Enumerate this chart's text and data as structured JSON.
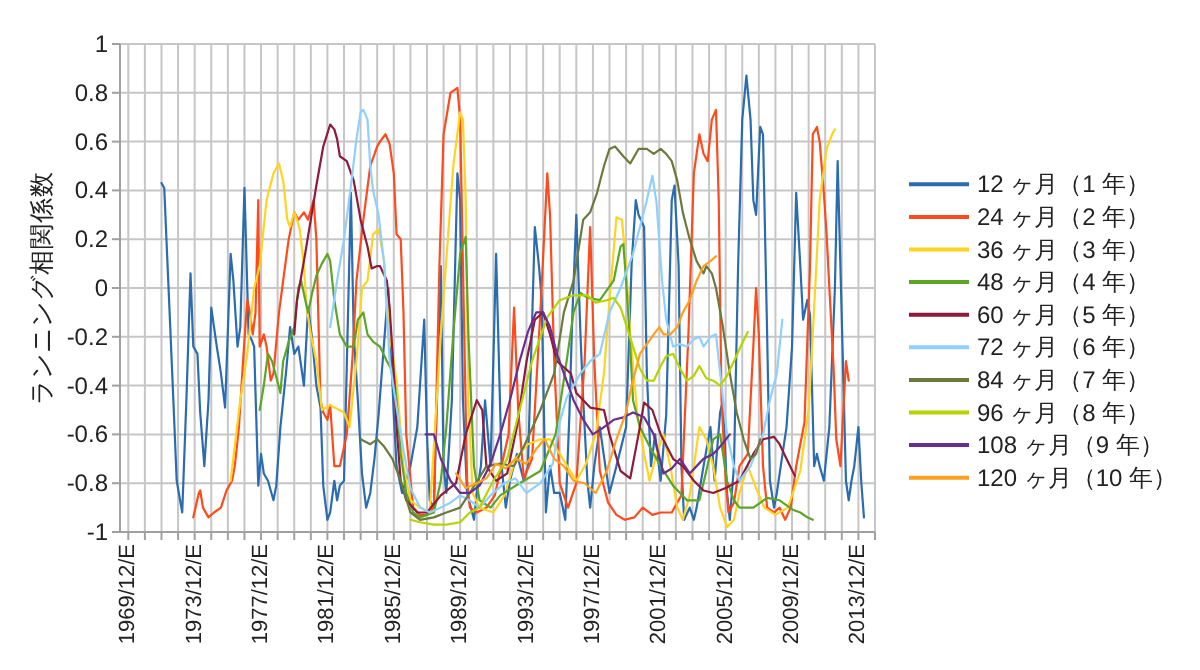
{
  "chart_data": {
    "type": "line",
    "ylabel": "ランニング相関係数",
    "xlim": [
      "1969-06",
      "2014-12"
    ],
    "ylim": [
      -1,
      1
    ],
    "yticks": [
      -1,
      -0.8,
      -0.6,
      -0.4,
      -0.2,
      0,
      0.2,
      0.4,
      0.6,
      0.8,
      1
    ],
    "xticks": [
      {
        "value": "1969-12",
        "label": "1969/12/E"
      },
      {
        "value": "1970-12",
        "label": null
      },
      {
        "value": "1971-12",
        "label": null
      },
      {
        "value": "1972-12",
        "label": null
      },
      {
        "value": "1973-12",
        "label": "1973/12/E"
      },
      {
        "value": "1974-12",
        "label": null
      },
      {
        "value": "1975-12",
        "label": null
      },
      {
        "value": "1976-12",
        "label": null
      },
      {
        "value": "1977-12",
        "label": "1977/12/E"
      },
      {
        "value": "1978-12",
        "label": null
      },
      {
        "value": "1979-12",
        "label": null
      },
      {
        "value": "1980-12",
        "label": null
      },
      {
        "value": "1981-12",
        "label": "1981/12/E"
      },
      {
        "value": "1982-12",
        "label": null
      },
      {
        "value": "1983-12",
        "label": null
      },
      {
        "value": "1984-12",
        "label": null
      },
      {
        "value": "1985-12",
        "label": "1985/12/E"
      },
      {
        "value": "1986-12",
        "label": null
      },
      {
        "value": "1987-12",
        "label": null
      },
      {
        "value": "1988-12",
        "label": null
      },
      {
        "value": "1989-12",
        "label": "1989/12/E"
      },
      {
        "value": "1990-12",
        "label": null
      },
      {
        "value": "1991-12",
        "label": null
      },
      {
        "value": "1992-12",
        "label": null
      },
      {
        "value": "1993-12",
        "label": "1993/12/E"
      },
      {
        "value": "1994-12",
        "label": null
      },
      {
        "value": "1995-12",
        "label": null
      },
      {
        "value": "1996-12",
        "label": null
      },
      {
        "value": "1997-12",
        "label": "1997/12/E"
      },
      {
        "value": "1998-12",
        "label": null
      },
      {
        "value": "1999-12",
        "label": null
      },
      {
        "value": "2000-12",
        "label": null
      },
      {
        "value": "2001-12",
        "label": "2001/12/E"
      },
      {
        "value": "2002-12",
        "label": null
      },
      {
        "value": "2003-12",
        "label": null
      },
      {
        "value": "2004-12",
        "label": null
      },
      {
        "value": "2005-12",
        "label": "2005/12/E"
      },
      {
        "value": "2006-12",
        "label": null
      },
      {
        "value": "2007-12",
        "label": null
      },
      {
        "value": "2008-12",
        "label": null
      },
      {
        "value": "2009-12",
        "label": "2009/12/E"
      },
      {
        "value": "2010-12",
        "label": null
      },
      {
        "value": "2011-12",
        "label": null
      },
      {
        "value": "2012-12",
        "label": null
      },
      {
        "value": "2013-12",
        "label": "2013/12/E"
      },
      {
        "value": "2014-12",
        "label": null
      }
    ],
    "grid": true,
    "legend": "right",
    "series": [
      {
        "name": "12 ヶ月（1 年）",
        "color": "#2b6cb0",
        "x": [
          "1971-12",
          "1972-02",
          "1972-08",
          "1972-11",
          "1973-03",
          "1973-06",
          "1973-09",
          "1973-11",
          "1974-02",
          "1974-04",
          "1974-07",
          "1974-10",
          "1974-12",
          "1975-02",
          "1975-04",
          "1975-07",
          "1975-10",
          "1976-02",
          "1976-04",
          "1976-07",
          "1976-09",
          "1976-12",
          "1977-03",
          "1977-05",
          "1977-07",
          "1977-10",
          "1977-12",
          "1978-02",
          "1978-05",
          "1978-09",
          "1978-11",
          "1979-02",
          "1979-06",
          "1979-09",
          "1979-12",
          "1980-03",
          "1980-07",
          "1980-10",
          "1981-01",
          "1981-04",
          "1981-07",
          "1981-09",
          "1981-12",
          "1982-02",
          "1982-05",
          "1982-07",
          "1982-09",
          "1982-12",
          "1983-02",
          "1983-05",
          "1983-07",
          "1983-10",
          "1984-01",
          "1984-04",
          "1984-07",
          "1984-10",
          "1985-01",
          "1985-08",
          "1985-12",
          "1986-02",
          "1986-06",
          "1986-12",
          "1987-05",
          "1987-10",
          "1987-12",
          "1988-02",
          "1988-05",
          "1988-10",
          "1988-12",
          "1989-02",
          "1989-06",
          "1989-10",
          "1989-12",
          "1990-02",
          "1990-05",
          "1990-10",
          "1990-12",
          "1991-03",
          "1991-06",
          "1991-10",
          "1992-02",
          "1992-06",
          "1992-09",
          "1992-12",
          "1993-05",
          "1993-10",
          "1994-01",
          "1994-06",
          "1994-09",
          "1994-11",
          "1995-02",
          "1995-05",
          "1995-08",
          "1995-12",
          "1996-04",
          "1996-07",
          "1996-09",
          "1996-12",
          "1997-03",
          "1997-05",
          "1997-08",
          "1997-10",
          "1998-01",
          "1998-05",
          "1998-09",
          "1998-12",
          "1999-05",
          "1999-12",
          "2000-04",
          "2000-07",
          "2000-09",
          "2001-01",
          "2001-03",
          "2001-06",
          "2001-09",
          "2002-01",
          "2002-05",
          "2002-09",
          "2002-11",
          "2003-02",
          "2003-04",
          "2003-06",
          "2003-10",
          "2004-01",
          "2004-03",
          "2004-08",
          "2005-01",
          "2005-04",
          "2005-08",
          "2005-10",
          "2006-01",
          "2006-03",
          "2006-06",
          "2006-09",
          "2006-12",
          "2007-03",
          "2007-06",
          "2007-08",
          "2007-10",
          "2008-01",
          "2008-03",
          "2008-06",
          "2008-08",
          "2008-11",
          "2009-01",
          "2009-08",
          "2009-12",
          "2010-03",
          "2010-06",
          "2010-08",
          "2010-11",
          "2011-01",
          "2011-04",
          "2011-06",
          "2011-08",
          "2011-11",
          "2012-03",
          "2012-07",
          "2012-09",
          "2012-12",
          "2013-03",
          "2013-05",
          "2013-07",
          "2013-09",
          "2013-12",
          "2014-02",
          "2014-04"
        ],
        "values": [
          0.43,
          0.41,
          -0.38,
          -0.79,
          -0.92,
          -0.46,
          0.06,
          -0.24,
          -0.27,
          -0.51,
          -0.73,
          -0.46,
          -0.08,
          -0.16,
          -0.24,
          -0.35,
          -0.49,
          0.14,
          0.03,
          -0.24,
          -0.16,
          0.41,
          -0.19,
          -0.21,
          -0.24,
          -0.81,
          -0.68,
          -0.76,
          -0.79,
          -0.87,
          -0.81,
          -0.57,
          -0.35,
          -0.16,
          -0.27,
          -0.24,
          -0.4,
          -0.08,
          -0.21,
          -0.4,
          -0.49,
          -0.81,
          -0.95,
          -0.92,
          -0.79,
          -0.87,
          -0.81,
          -0.79,
          -0.32,
          0.39,
          -0.19,
          -0.46,
          -0.76,
          -0.9,
          -0.84,
          -0.7,
          -0.52,
          0.0,
          -0.52,
          -0.73,
          -0.84,
          -0.73,
          -0.57,
          -0.13,
          -0.6,
          -0.87,
          -0.9,
          0.09,
          -0.73,
          -0.84,
          -0.46,
          0.47,
          0.36,
          -0.46,
          -0.84,
          -0.95,
          -0.84,
          -0.73,
          -0.46,
          -0.73,
          0.14,
          -0.73,
          -0.9,
          -0.79,
          -0.68,
          -0.79,
          -0.73,
          0.25,
          0.09,
          -0.05,
          -0.92,
          -0.73,
          -0.84,
          -0.84,
          -0.95,
          -0.52,
          -0.13,
          0.3,
          -0.19,
          -0.46,
          -0.79,
          -0.9,
          -0.73,
          -0.57,
          -0.73,
          -0.84,
          -0.73,
          -0.57,
          0.1,
          0.36,
          0.3,
          0.25,
          -0.35,
          -0.73,
          -0.6,
          -0.79,
          -0.52,
          0.36,
          0.42,
          0.09,
          -0.73,
          -0.95,
          -0.9,
          -0.95,
          -0.9,
          -0.73,
          -0.57,
          -0.79,
          -0.51,
          -0.46,
          -0.84,
          -0.95,
          -0.73,
          0.09,
          0.69,
          0.87,
          0.69,
          0.36,
          0.3,
          0.66,
          0.63,
          -0.19,
          -0.79,
          -0.9,
          -0.84,
          -0.57,
          -0.24,
          0.39,
          0.09,
          -0.13,
          -0.05,
          -0.11,
          -0.73,
          -0.68,
          -0.73,
          -0.79,
          -0.57,
          0.0,
          0.52,
          -0.13,
          -0.79,
          -0.87,
          -0.79,
          -0.73,
          -0.57,
          -0.79,
          -0.94
        ]
      },
      {
        "name": "24 ヶ月（2 年）",
        "color": "#ff4a1c",
        "x": [
          "1973-11",
          "1974-03",
          "1974-04",
          "1974-06",
          "1974-10",
          "1975-02",
          "1975-07",
          "1975-11",
          "1976-03",
          "1976-05",
          "1976-08",
          "1976-11",
          "1977-02",
          "1977-04",
          "1977-06",
          "1977-08",
          "1977-10",
          "1977-11",
          "1978-02",
          "1978-04",
          "1978-07",
          "1978-09",
          "1979-01",
          "1979-04",
          "1979-08",
          "1979-12",
          "1980-03",
          "1980-07",
          "1980-10",
          "1981-02",
          "1981-04",
          "1981-07",
          "1981-09",
          "1981-12",
          "1982-02",
          "1982-05",
          "1982-09",
          "1983-02",
          "1983-06",
          "1983-09",
          "1984-02",
          "1984-07",
          "1984-12",
          "1985-02",
          "1985-06",
          "1985-09",
          "1985-12",
          "1986-02",
          "1986-05",
          "1986-07",
          "1986-09",
          "1987-02",
          "1987-07",
          "1987-12",
          "1988-05",
          "1988-09",
          "1988-12",
          "1989-05",
          "1989-10",
          "1989-12",
          "1990-02",
          "1990-05",
          "1990-07",
          "1990-12",
          "1991-07",
          "1992-01",
          "1992-05",
          "1992-11",
          "1993-03",
          "1993-06",
          "1993-10",
          "1994-04",
          "1994-10",
          "1995-03",
          "1995-05",
          "1995-08",
          "1995-12",
          "1996-06",
          "1996-12",
          "1997-06",
          "1997-10",
          "1998-01",
          "1998-05",
          "1998-11",
          "1999-05",
          "1999-11",
          "2000-06",
          "2000-12",
          "2001-07",
          "2002-01",
          "2002-09",
          "2003-04",
          "2003-09",
          "2004-01",
          "2004-05",
          "2004-08",
          "2004-11",
          "2005-02",
          "2005-05",
          "2005-07",
          "2005-09",
          "2005-12",
          "2006-02",
          "2006-06",
          "2006-10",
          "2007-04",
          "2007-08",
          "2007-10",
          "2007-12",
          "2008-03",
          "2008-06",
          "2008-11",
          "2009-03",
          "2009-07",
          "2009-11",
          "2010-03",
          "2010-09",
          "2011-01",
          "2011-03",
          "2011-06",
          "2011-08",
          "2011-11",
          "2012-01",
          "2012-03",
          "2012-06",
          "2012-08",
          "2012-11",
          "2013-03",
          "2013-05"
        ],
        "values": [
          -0.94,
          -0.84,
          -0.83,
          -0.9,
          -0.94,
          -0.92,
          -0.9,
          -0.83,
          -0.79,
          -0.73,
          -0.57,
          -0.3,
          -0.05,
          -0.1,
          -0.19,
          -0.1,
          0.36,
          -0.24,
          -0.19,
          -0.24,
          -0.38,
          -0.35,
          -0.1,
          0.03,
          0.2,
          0.31,
          0.28,
          0.31,
          0.28,
          0.36,
          0.2,
          -0.46,
          -0.51,
          -0.54,
          -0.48,
          -0.73,
          -0.73,
          -0.6,
          -0.3,
          0.03,
          0.28,
          0.5,
          0.58,
          0.6,
          0.63,
          0.59,
          0.47,
          0.22,
          0.2,
          -0.1,
          -0.6,
          -0.9,
          -0.93,
          -0.93,
          -0.9,
          0.09,
          0.63,
          0.8,
          0.82,
          0.69,
          0.09,
          -0.79,
          -0.9,
          -0.92,
          -0.9,
          -0.85,
          -0.75,
          -0.6,
          -0.08,
          -0.5,
          -0.78,
          -0.7,
          -0.1,
          0.47,
          0.3,
          -0.3,
          -0.8,
          -0.9,
          -0.8,
          -0.3,
          0.25,
          -0.3,
          -0.75,
          -0.88,
          -0.93,
          -0.95,
          -0.94,
          -0.9,
          -0.93,
          -0.92,
          -0.92,
          -0.85,
          -0.2,
          0.47,
          0.63,
          0.55,
          0.52,
          0.69,
          0.73,
          0.36,
          -0.46,
          -0.79,
          -0.92,
          -0.88,
          -0.73,
          -0.68,
          -0.24,
          0.0,
          -0.19,
          -0.73,
          -0.9,
          -0.92,
          -0.9,
          -0.95,
          -0.9,
          -0.73,
          -0.55,
          0.09,
          0.63,
          0.66,
          0.6,
          0.39,
          0.22,
          0.0,
          -0.32,
          -0.62,
          -0.73,
          -0.3,
          -0.38
        ]
      },
      {
        "name": "36 ヶ月（3 年）",
        "color": "#ffd320",
        "x": [
          "1976-02",
          "1976-09",
          "1977-02",
          "1977-07",
          "1977-11",
          "1978-04",
          "1978-09",
          "1979-01",
          "1979-04",
          "1979-07",
          "1979-09",
          "1979-12",
          "1980-02",
          "1980-04",
          "1980-07",
          "1980-09",
          "1980-12",
          "1981-04",
          "1981-08",
          "1982-02",
          "1982-12",
          "1983-04",
          "1983-09",
          "1984-01",
          "1984-05",
          "1984-09",
          "1985-01",
          "1985-05",
          "1985-09",
          "1986-02",
          "1986-07",
          "1986-12",
          "1987-07",
          "1988-02",
          "1988-10",
          "1989-07",
          "1989-12",
          "1990-02",
          "1990-04",
          "1990-06",
          "1990-09",
          "1991-02",
          "1991-12",
          "1992-08",
          "1993-04",
          "1994-01",
          "1994-10",
          "1995-05",
          "1995-12",
          "1996-12",
          "1997-07",
          "1998-02",
          "1998-08",
          "1998-12",
          "1999-05",
          "1999-09",
          "1999-12",
          "2000-03",
          "2000-08",
          "2001-01",
          "2001-05",
          "2001-10",
          "2002-03",
          "2002-08",
          "2003-01",
          "2003-05",
          "2003-10",
          "2004-05",
          "2004-10",
          "2005-03",
          "2005-08",
          "2006-01",
          "2006-06",
          "2006-10",
          "2007-04",
          "2007-10",
          "2008-04",
          "2008-12",
          "2009-09",
          "2010-06",
          "2010-12",
          "2011-03",
          "2011-08",
          "2012-01",
          "2012-05",
          "2012-07"
        ],
        "values": [
          -0.79,
          -0.46,
          -0.27,
          0.0,
          0.09,
          0.36,
          0.47,
          0.51,
          0.44,
          0.28,
          0.25,
          0.31,
          0.28,
          0.24,
          0.09,
          -0.08,
          -0.19,
          -0.3,
          -0.5,
          -0.48,
          -0.51,
          -0.57,
          -0.3,
          0.0,
          0.03,
          0.22,
          0.24,
          0.11,
          -0.19,
          -0.38,
          -0.73,
          -0.87,
          -0.9,
          -0.92,
          -0.19,
          0.5,
          0.72,
          0.69,
          0.36,
          -0.46,
          -0.84,
          -0.9,
          -0.92,
          -0.85,
          -0.7,
          -0.64,
          -0.62,
          -0.62,
          -0.68,
          -0.79,
          -0.72,
          -0.6,
          -0.35,
          -0.05,
          0.29,
          0.28,
          0.09,
          -0.19,
          -0.51,
          -0.68,
          -0.79,
          -0.68,
          -0.6,
          -0.73,
          -0.9,
          -0.95,
          -0.85,
          -0.57,
          -0.62,
          -0.73,
          -0.9,
          -0.98,
          -0.95,
          -0.84,
          -0.73,
          -0.82,
          -0.9,
          -0.93,
          -0.9,
          -0.75,
          -0.5,
          -0.19,
          0.36,
          0.57,
          0.63,
          0.65
        ]
      },
      {
        "name": "48 ヶ月（4 年）",
        "color": "#5ca528",
        "x": [
          "1977-11",
          "1978-02",
          "1978-05",
          "1978-08",
          "1979-02",
          "1979-04",
          "1979-08",
          "1979-12",
          "1980-03",
          "1980-05",
          "1980-08",
          "1980-10",
          "1981-01",
          "1981-04",
          "1981-08",
          "1981-12",
          "1982-02",
          "1982-05",
          "1982-09",
          "1983-02",
          "1983-07",
          "1983-10",
          "1984-02",
          "1984-05",
          "1984-09",
          "1985-02",
          "1985-07",
          "1985-12",
          "1986-02",
          "1986-05",
          "1986-09",
          "1987-02",
          "1987-07",
          "1988-05",
          "1988-10",
          "1989-02",
          "1989-07",
          "1989-12",
          "1990-04",
          "1990-06",
          "1990-10",
          "1991-02",
          "1991-10",
          "1992-05",
          "1993-07",
          "1994-10",
          "1995-09",
          "1996-05",
          "1996-10",
          "1997-03",
          "1997-08",
          "1998-05",
          "1999-03",
          "1999-08",
          "1999-10",
          "1999-12",
          "2000-03",
          "2000-05",
          "2000-10",
          "2001-05",
          "2002-01",
          "2002-10",
          "2003-08",
          "2004-05",
          "2004-10",
          "2005-03",
          "2005-08",
          "2006-01",
          "2006-06",
          "2006-10",
          "2007-08",
          "2008-06",
          "2009-03",
          "2010-01",
          "2010-06",
          "2010-11",
          "2011-03"
        ],
        "values": [
          -0.5,
          -0.4,
          -0.27,
          -0.3,
          -0.43,
          -0.3,
          -0.22,
          -0.16,
          0.0,
          0.03,
          -0.05,
          -0.1,
          -0.02,
          0.05,
          0.1,
          0.14,
          0.11,
          -0.05,
          -0.19,
          -0.24,
          -0.24,
          -0.13,
          -0.1,
          -0.19,
          -0.22,
          -0.24,
          -0.3,
          -0.35,
          -0.46,
          -0.68,
          -0.84,
          -0.92,
          -0.94,
          -0.92,
          -0.79,
          -0.57,
          -0.19,
          0.14,
          0.21,
          -0.2,
          -0.73,
          -0.87,
          -0.9,
          -0.85,
          -0.8,
          -0.75,
          -0.6,
          -0.3,
          -0.1,
          -0.02,
          -0.04,
          -0.05,
          0.03,
          0.17,
          0.18,
          0.03,
          -0.24,
          -0.46,
          -0.57,
          -0.65,
          -0.73,
          -0.81,
          -0.87,
          -0.87,
          -0.75,
          -0.62,
          -0.6,
          -0.79,
          -0.87,
          -0.9,
          -0.9,
          -0.86,
          -0.87,
          -0.91,
          -0.92,
          -0.94,
          -0.95
        ]
      },
      {
        "name": "60 ヶ月（5 年）",
        "color": "#8e1a3c",
        "x": [
          "1979-12",
          "1980-02",
          "1980-07",
          "1980-12",
          "1981-04",
          "1981-09",
          "1982-02",
          "1982-05",
          "1982-07",
          "1982-09",
          "1983-02",
          "1983-07",
          "1983-12",
          "1984-05",
          "1984-08",
          "1984-12",
          "1985-02",
          "1985-07",
          "1985-09",
          "1985-12",
          "1986-02",
          "1986-05",
          "1986-09",
          "1987-05",
          "1987-12",
          "1988-10",
          "1989-09",
          "1990-04",
          "1990-12",
          "1991-04",
          "1991-07",
          "1992-02",
          "1992-10",
          "1993-05",
          "1993-12",
          "1994-06",
          "1994-12",
          "1995-05",
          "1995-10",
          "1996-08",
          "1996-12",
          "1997-05",
          "1997-10",
          "1998-08",
          "1998-12",
          "1999-08",
          "2000-03",
          "2000-09",
          "2001-01",
          "2001-07",
          "2002-01",
          "2002-10",
          "2003-05",
          "2004-01",
          "2004-08",
          "2005-03",
          "2005-12",
          "2006-10",
          "2007-08",
          "2008-03",
          "2008-11",
          "2009-03",
          "2009-08",
          "2010-02"
        ],
        "values": [
          -0.19,
          -0.05,
          0.11,
          0.28,
          0.42,
          0.58,
          0.67,
          0.65,
          0.61,
          0.54,
          0.52,
          0.44,
          0.28,
          0.17,
          0.08,
          0.09,
          0.09,
          0.03,
          -0.08,
          -0.35,
          -0.57,
          -0.79,
          -0.87,
          -0.92,
          -0.92,
          -0.85,
          -0.8,
          -0.6,
          -0.46,
          -0.5,
          -0.73,
          -0.79,
          -0.76,
          -0.57,
          -0.3,
          -0.13,
          -0.1,
          -0.19,
          -0.3,
          -0.35,
          -0.43,
          -0.46,
          -0.49,
          -0.5,
          -0.6,
          -0.75,
          -0.78,
          -0.6,
          -0.47,
          -0.5,
          -0.6,
          -0.7,
          -0.73,
          -0.79,
          -0.83,
          -0.84,
          -0.82,
          -0.79,
          -0.68,
          -0.62,
          -0.61,
          -0.64,
          -0.7,
          -0.77
        ]
      },
      {
        "name": "72 ヶ月（6 年）",
        "color": "#8fd0ff",
        "x": [
          "1982-02",
          "1982-07",
          "1982-12",
          "1983-05",
          "1983-09",
          "1983-12",
          "1984-02",
          "1984-05",
          "1984-07",
          "1984-09",
          "1985-01",
          "1985-05",
          "1985-09",
          "1986-05",
          "1986-12",
          "1987-07",
          "1988-02",
          "1988-10",
          "1989-05",
          "1989-12",
          "1990-07",
          "1991-02",
          "1991-10",
          "1992-08",
          "1993-04",
          "1993-12",
          "1994-10",
          "1995-07",
          "1995-12",
          "1996-05",
          "1997-03",
          "1997-10",
          "1998-05",
          "1998-12",
          "1999-08",
          "2000-05",
          "2001-03",
          "2001-07",
          "2001-10",
          "2002-02",
          "2002-05",
          "2002-10",
          "2003-03",
          "2003-08",
          "2004-01",
          "2004-05",
          "2004-08",
          "2005-01",
          "2005-05",
          "2005-09",
          "2006-01",
          "2006-06",
          "2006-10",
          "2007-06",
          "2008-03",
          "2008-08",
          "2009-01",
          "2009-05"
        ],
        "values": [
          -0.16,
          0.03,
          0.2,
          0.42,
          0.61,
          0.72,
          0.73,
          0.69,
          0.5,
          0.4,
          0.3,
          0.1,
          -0.3,
          -0.6,
          -0.82,
          -0.9,
          -0.92,
          -0.9,
          -0.88,
          -0.85,
          -0.87,
          -0.9,
          -0.85,
          -0.8,
          -0.78,
          -0.84,
          -0.8,
          -0.72,
          -0.55,
          -0.45,
          -0.35,
          -0.3,
          -0.27,
          -0.1,
          0.0,
          0.14,
          0.36,
          0.46,
          0.35,
          0.03,
          -0.13,
          -0.24,
          -0.23,
          -0.24,
          -0.21,
          -0.2,
          -0.24,
          -0.2,
          -0.19,
          -0.4,
          -0.6,
          -0.73,
          -0.79,
          -0.73,
          -0.6,
          -0.46,
          -0.35,
          -0.13
        ]
      },
      {
        "name": "84 ヶ月（7 年）",
        "color": "#6b7a3c",
        "x": [
          "1983-12",
          "1984-07",
          "1984-12",
          "1985-05",
          "1985-11",
          "1986-05",
          "1986-12",
          "1987-07",
          "1988-05",
          "1989-02",
          "1989-12",
          "1990-07",
          "1991-07",
          "1992-05",
          "1993-03",
          "1993-10",
          "1994-10",
          "1995-08",
          "1996-03",
          "1996-10",
          "1997-05",
          "1997-10",
          "1998-03",
          "1998-08",
          "1998-12",
          "1999-04",
          "1999-10",
          "2000-03",
          "2000-09",
          "2001-03",
          "2001-08",
          "2002-01",
          "2002-05",
          "2002-09",
          "2003-01",
          "2003-05",
          "2003-10",
          "2004-03",
          "2004-08",
          "2004-10",
          "2005-02",
          "2005-05",
          "2005-10",
          "2006-03",
          "2006-08",
          "2007-01",
          "2007-06",
          "2007-10",
          "2008-01"
        ],
        "values": [
          -0.62,
          -0.64,
          -0.62,
          -0.65,
          -0.7,
          -0.79,
          -0.92,
          -0.95,
          -0.94,
          -0.92,
          -0.9,
          -0.84,
          -0.73,
          -0.72,
          -0.73,
          -0.65,
          -0.5,
          -0.35,
          -0.1,
          0.03,
          0.28,
          0.31,
          0.39,
          0.5,
          0.57,
          0.58,
          0.54,
          0.51,
          0.57,
          0.57,
          0.55,
          0.57,
          0.55,
          0.52,
          0.44,
          0.31,
          0.2,
          0.11,
          0.06,
          0.09,
          0.06,
          0.0,
          -0.16,
          -0.35,
          -0.51,
          -0.62,
          -0.7,
          -0.68,
          -0.62
        ]
      },
      {
        "name": "96 ヶ月（8 年）",
        "color": "#b5d400",
        "x": [
          "1986-12",
          "1987-07",
          "1988-05",
          "1989-02",
          "1989-12",
          "1990-07",
          "1991-02",
          "1991-12",
          "1992-10",
          "1993-07",
          "1994-04",
          "1995-03",
          "1995-12",
          "1996-10",
          "1997-08",
          "1998-02",
          "1998-10",
          "1999-03",
          "1999-08",
          "1999-12",
          "2000-05",
          "2000-10",
          "2001-03",
          "2001-08",
          "2002-01",
          "2002-05",
          "2002-10",
          "2003-03",
          "2003-08",
          "2004-01",
          "2004-05",
          "2004-10",
          "2005-03",
          "2005-08",
          "2006-01",
          "2006-06",
          "2006-10",
          "2007-04"
        ],
        "values": [
          -0.95,
          -0.96,
          -0.97,
          -0.97,
          -0.96,
          -0.92,
          -0.9,
          -0.79,
          -0.7,
          -0.5,
          -0.3,
          -0.12,
          -0.05,
          -0.03,
          -0.03,
          -0.06,
          -0.05,
          -0.04,
          -0.08,
          -0.15,
          -0.24,
          -0.33,
          -0.38,
          -0.38,
          -0.32,
          -0.28,
          -0.27,
          -0.33,
          -0.38,
          -0.36,
          -0.32,
          -0.37,
          -0.38,
          -0.4,
          -0.36,
          -0.3,
          -0.25,
          -0.18
        ]
      },
      {
        "name": "108 ヶ月（9 年）",
        "color": "#6a2e8e",
        "x": [
          "1987-11",
          "1988-05",
          "1988-10",
          "1989-05",
          "1989-12",
          "1990-07",
          "1991-02",
          "1991-10",
          "1992-05",
          "1992-12",
          "1993-07",
          "1994-01",
          "1994-07",
          "1994-12",
          "1995-05",
          "1995-10",
          "1996-03",
          "1996-10",
          "1997-05",
          "1997-12",
          "1998-08",
          "1999-03",
          "1999-10",
          "2000-05",
          "2001-01",
          "2001-08",
          "2002-03",
          "2002-09",
          "2003-03",
          "2003-10",
          "2004-03",
          "2004-08",
          "2005-03",
          "2005-08",
          "2006-03"
        ],
        "values": [
          -0.6,
          -0.6,
          -0.7,
          -0.79,
          -0.84,
          -0.84,
          -0.81,
          -0.72,
          -0.6,
          -0.46,
          -0.3,
          -0.18,
          -0.1,
          -0.1,
          -0.16,
          -0.27,
          -0.35,
          -0.46,
          -0.54,
          -0.6,
          -0.57,
          -0.54,
          -0.53,
          -0.51,
          -0.53,
          -0.6,
          -0.76,
          -0.74,
          -0.7,
          -0.76,
          -0.73,
          -0.7,
          -0.68,
          -0.65,
          -0.6
        ]
      },
      {
        "name": "120 ヶ月（10 年）",
        "color": "#ffa020",
        "x": [
          "1989-09",
          "1990-04",
          "1990-12",
          "1991-07",
          "1992-02",
          "1992-09",
          "1993-04",
          "1993-12",
          "1994-07",
          "1995-01",
          "1995-08",
          "1996-03",
          "1996-10",
          "1997-06",
          "1998-02",
          "1998-10",
          "1999-05",
          "1999-12",
          "2000-04",
          "2000-10",
          "2001-08",
          "2001-12",
          "2002-03",
          "2002-08",
          "2003-01",
          "2003-05",
          "2003-10",
          "2004-03",
          "2004-08",
          "2005-01",
          "2005-05"
        ],
        "values": [
          -0.76,
          -0.82,
          -0.8,
          -0.78,
          -0.72,
          -0.74,
          -0.7,
          -0.72,
          -0.66,
          -0.62,
          -0.7,
          -0.73,
          -0.79,
          -0.8,
          -0.84,
          -0.75,
          -0.62,
          -0.51,
          -0.4,
          -0.27,
          -0.19,
          -0.16,
          -0.19,
          -0.19,
          -0.16,
          -0.1,
          -0.05,
          0.03,
          0.09,
          0.11,
          0.13
        ]
      }
    ]
  }
}
